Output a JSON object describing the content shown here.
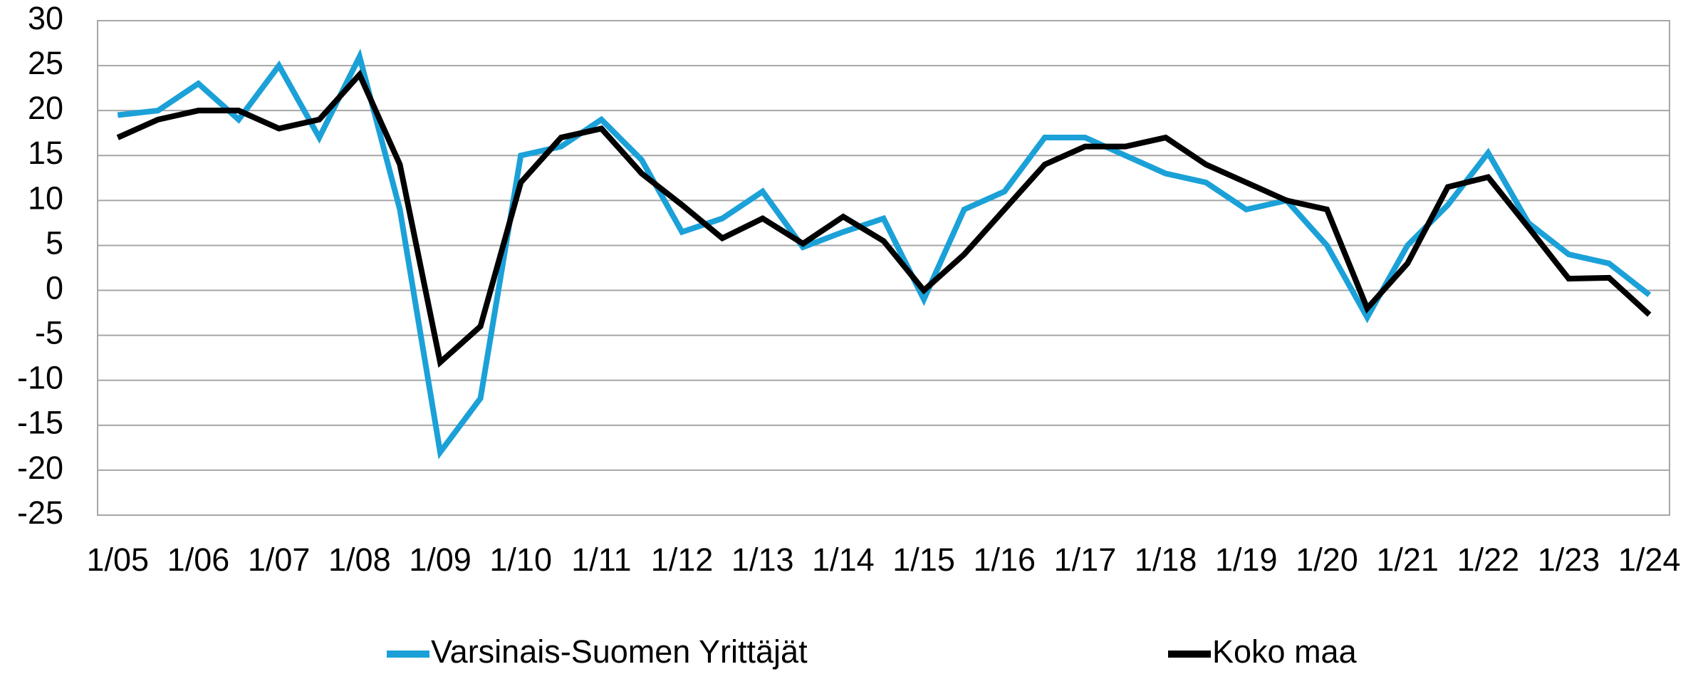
{
  "chart_data": {
    "type": "line",
    "categories": [
      "1/05",
      null,
      "1/06",
      null,
      "1/07",
      null,
      "1/08",
      null,
      "1/09",
      null,
      "1/10",
      null,
      "1/11",
      null,
      "1/12",
      null,
      "1/13",
      null,
      "1/14",
      null,
      "1/15",
      null,
      "1/16",
      null,
      "1/17",
      null,
      "1/18",
      null,
      "1/19",
      null,
      "1/20",
      null,
      "1/21",
      null,
      "1/22",
      null,
      "1/23",
      null,
      "1/24"
    ],
    "series": [
      {
        "name": "Varsinais-Suomen Yrittäjät",
        "color": "#1ba1d8",
        "values": [
          19.5,
          20,
          23,
          19,
          25,
          17,
          26,
          9,
          -18,
          -12,
          15,
          16,
          19,
          14.5,
          6.5,
          8,
          11,
          4.8,
          6.5,
          8,
          -1,
          9,
          11,
          17,
          17,
          15,
          13,
          12,
          9,
          10,
          5,
          -3,
          5,
          9.5,
          15.3,
          7.5,
          4,
          3,
          -0.5
        ]
      },
      {
        "name": "Koko maa",
        "color": "#000000",
        "values": [
          17,
          19,
          20,
          20,
          18,
          19,
          24,
          14,
          -8,
          -4,
          12,
          17,
          18,
          13,
          9.5,
          5.8,
          8,
          5.2,
          8.2,
          5.5,
          0,
          4,
          9,
          14,
          16,
          16,
          17,
          14,
          12,
          10,
          9,
          -2,
          3,
          11.5,
          12.6,
          7,
          1.3,
          1.4,
          -2.7
        ]
      }
    ],
    "ylim": [
      -25,
      30
    ],
    "yticks": [
      -25,
      -20,
      -15,
      -10,
      -5,
      0,
      5,
      10,
      15,
      20,
      25,
      30
    ],
    "grid": true,
    "legend": "bottom"
  }
}
